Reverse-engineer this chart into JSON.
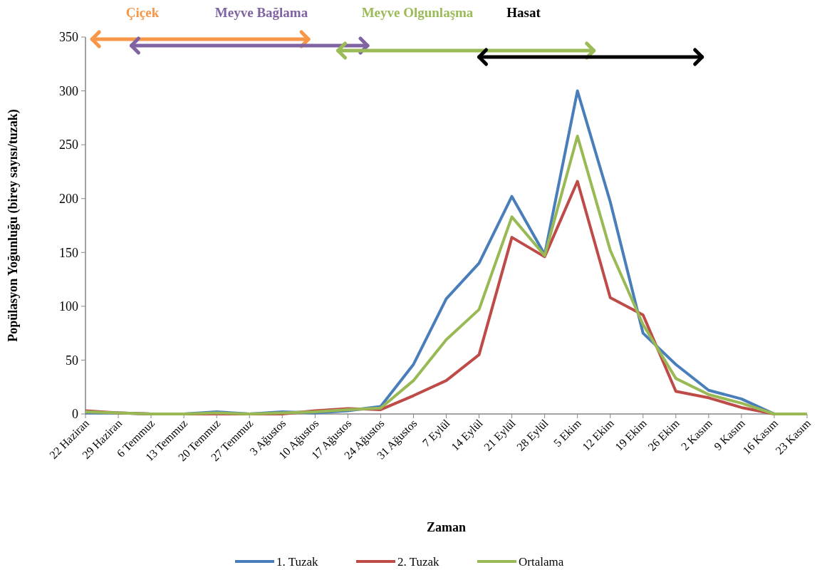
{
  "chart_data": {
    "type": "line",
    "xlabel": "Zaman",
    "ylabel": "Popülasyon Yoğunluğu (birey sayısı/tuzak)",
    "categories": [
      "22 Haziran",
      "29 Haziran",
      "6 Temmuz",
      "13 Temmuz",
      "20 Temmuz",
      "27 Temmuz",
      "3 Ağustos",
      "10 Ağustos",
      "17 Ağustos",
      "24 Ağustos",
      "31 Ağustos",
      "7 Eylül",
      "14 Eylül",
      "21 Eylül",
      "28 Eylül",
      "5 Ekim",
      "12 Ekim",
      "19 Ekim",
      "26 Ekim",
      "2 Kasım",
      "9 Kasım",
      "16 Kasım",
      "23 Kasım"
    ],
    "series": [
      {
        "name": "1. Tuzak",
        "color": "#4a7ebb",
        "values": [
          1,
          1,
          0,
          0,
          2,
          0,
          2,
          1,
          3,
          7,
          46,
          107,
          140,
          202,
          148,
          300,
          197,
          75,
          46,
          22,
          14,
          0,
          0
        ]
      },
      {
        "name": "2. Tuzak",
        "color": "#be4b48",
        "values": [
          3,
          1,
          0,
          0,
          0,
          0,
          0,
          3,
          5,
          4,
          17,
          31,
          55,
          164,
          146,
          216,
          108,
          92,
          21,
          15,
          6,
          0,
          0
        ]
      },
      {
        "name": "Ortalama",
        "color": "#98b954",
        "values": [
          2,
          1,
          0,
          0,
          1,
          0,
          1,
          2,
          4,
          5.5,
          31,
          69,
          97,
          183,
          147,
          258,
          152,
          83,
          33,
          18,
          10,
          0,
          0
        ]
      }
    ],
    "ylim": [
      0,
      350
    ],
    "yticks": [
      0,
      50,
      100,
      150,
      200,
      250,
      300,
      350
    ],
    "grid": false,
    "legend": "bottom",
    "line_style": "solid",
    "annotations": [
      "Çiçek",
      "Meyve Bağlama",
      "Meyve Olgunlaşma",
      "Hasat"
    ]
  }
}
